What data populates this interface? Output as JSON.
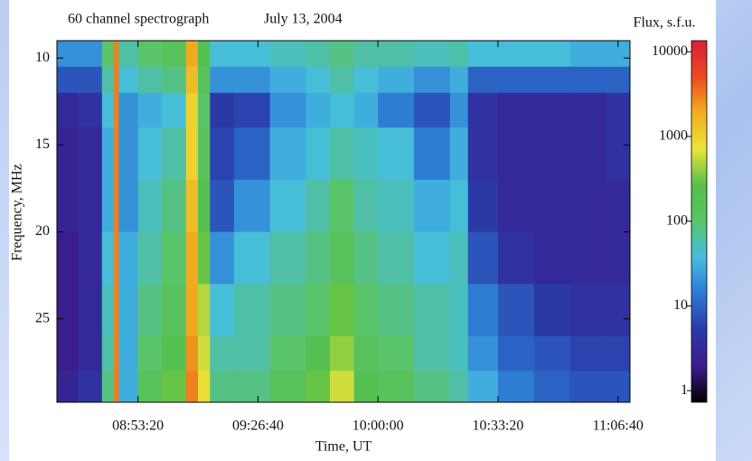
{
  "chart_data": {
    "type": "heatmap",
    "title": "60 channel spectrograph",
    "date": "July 13, 2004",
    "colorbar_label": "Flux, s.f.u.",
    "xlabel": "Time, UT",
    "ylabel": "Frequency, MHz",
    "xlim": [
      30650,
      40200
    ],
    "xticks": [
      {
        "value": 32000,
        "label": "08:53:20"
      },
      {
        "value": 34000,
        "label": "09:26:40"
      },
      {
        "value": 36000,
        "label": "10:00:00"
      },
      {
        "value": 38000,
        "label": "10:33:20"
      },
      {
        "value": 40000,
        "label": "11:06:40"
      }
    ],
    "ylim": [
      9,
      29.8
    ],
    "yticks": [
      10,
      15,
      20,
      25
    ],
    "y_inverted": true,
    "clim": [
      0.73,
      13500
    ],
    "cticks": [
      1,
      10,
      100,
      1000,
      10000
    ],
    "color_log_scale": true,
    "colormap": [
      "#000000",
      "#3b1c8c",
      "#2a3aa8",
      "#2c78d4",
      "#45bde0",
      "#5ac46a",
      "#55c048",
      "#e8e43a",
      "#f0b020",
      "#ec4a1e",
      "#d8203a"
    ],
    "x_edges": [
      30650,
      31000,
      31400,
      31600,
      31680,
      32000,
      32400,
      32800,
      33000,
      33200,
      33600,
      34200,
      34800,
      35200,
      35600,
      36000,
      36600,
      37200,
      37500,
      38000,
      38600,
      39200,
      39800,
      40200
    ],
    "y_edges": [
      9,
      10.5,
      12,
      14,
      17,
      20,
      23,
      26,
      28,
      29.8
    ],
    "z": [
      [
        20,
        20,
        100,
        3000,
        60,
        100,
        150,
        2000,
        200,
        40,
        40,
        50,
        60,
        80,
        60,
        60,
        50,
        60,
        40,
        40,
        40,
        30,
        30
      ],
      [
        8,
        8,
        60,
        3000,
        40,
        60,
        80,
        1500,
        150,
        20,
        20,
        30,
        40,
        60,
        40,
        30,
        20,
        30,
        10,
        10,
        10,
        10,
        10
      ],
      [
        3,
        4,
        40,
        3000,
        20,
        30,
        40,
        1000,
        100,
        5,
        6,
        20,
        30,
        40,
        30,
        15,
        8,
        20,
        4,
        3,
        3,
        3,
        4
      ],
      [
        2.5,
        3,
        30,
        3000,
        20,
        40,
        60,
        1000,
        150,
        6,
        10,
        30,
        40,
        60,
        50,
        40,
        15,
        30,
        4,
        3,
        3,
        3,
        4
      ],
      [
        2.5,
        3,
        30,
        3000,
        20,
        50,
        80,
        1500,
        200,
        8,
        20,
        40,
        60,
        100,
        60,
        50,
        30,
        40,
        5,
        3,
        3,
        3,
        3
      ],
      [
        2,
        3,
        40,
        3000,
        30,
        60,
        100,
        2000,
        300,
        20,
        40,
        60,
        80,
        150,
        80,
        60,
        40,
        50,
        8,
        4,
        3,
        3,
        3
      ],
      [
        2,
        3,
        50,
        3000,
        30,
        80,
        150,
        2000,
        500,
        40,
        60,
        80,
        100,
        300,
        100,
        80,
        60,
        50,
        15,
        8,
        5,
        4,
        4
      ],
      [
        2,
        3,
        60,
        3000,
        30,
        100,
        200,
        2500,
        600,
        60,
        60,
        100,
        200,
        400,
        150,
        100,
        60,
        50,
        20,
        10,
        8,
        6,
        6
      ],
      [
        2.5,
        4,
        80,
        3000,
        30,
        150,
        300,
        3000,
        800,
        80,
        80,
        150,
        300,
        600,
        200,
        150,
        80,
        60,
        30,
        15,
        10,
        8,
        8
      ]
    ]
  }
}
